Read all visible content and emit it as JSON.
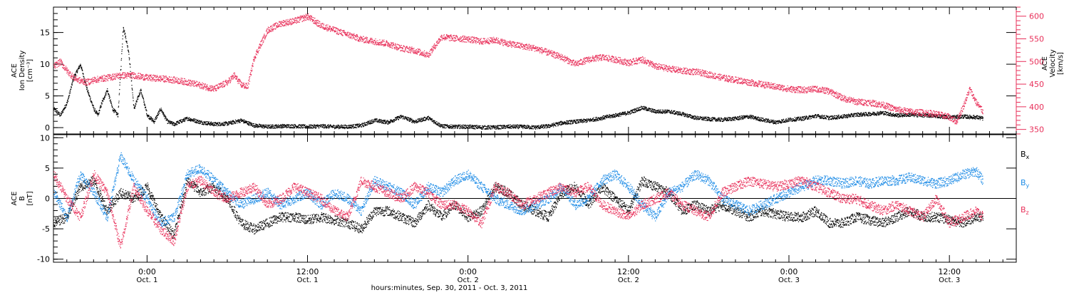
{
  "chart_data": [
    {
      "type": "scatter",
      "panel": "top",
      "left_axis": {
        "label_lines": [
          "ACE",
          "Ion Density",
          "[cm⁻³]"
        ],
        "ylim": [
          -1,
          19
        ],
        "ticks": [
          0,
          5,
          10,
          15
        ],
        "color": "#000000"
      },
      "right_axis": {
        "label_lines": [
          "ACE",
          "Velocity",
          "[km/s]"
        ],
        "ylim": [
          340,
          620
        ],
        "ticks": [
          350,
          400,
          450,
          500,
          550,
          600
        ],
        "color": "#e8305a"
      },
      "x_hours_from_sep30_0000": {
        "xlim": [
          17,
          89
        ]
      },
      "series": [
        {
          "axis": "left",
          "color": "#000000",
          "x": [
            17,
            17.5,
            18,
            18.5,
            19,
            19.5,
            20,
            20.3,
            20.6,
            21,
            21.4,
            21.8,
            22.2,
            22.6,
            23,
            23.5,
            24,
            24.5,
            25,
            25.5,
            26,
            27,
            28,
            29,
            30,
            31,
            32,
            33,
            34,
            35,
            36,
            37,
            38,
            39,
            40,
            41,
            42,
            43,
            44,
            45,
            46,
            47,
            48,
            49,
            50,
            51,
            52,
            53,
            54,
            55,
            56,
            57,
            58,
            59,
            60,
            61,
            62,
            63,
            64,
            65,
            66,
            67,
            68,
            69,
            70,
            71,
            72,
            73,
            74,
            75,
            76,
            77,
            78,
            79,
            80,
            81,
            82,
            83,
            84,
            85,
            86,
            86.5
          ],
          "y": [
            3,
            2,
            4,
            8,
            10,
            6,
            3,
            2,
            4,
            6,
            3,
            2,
            16,
            12,
            3,
            6,
            2,
            1,
            3,
            1,
            0.6,
            1.5,
            0.9,
            0.6,
            0.7,
            1.2,
            0.4,
            0.2,
            0.3,
            0.3,
            0.2,
            0.3,
            0.2,
            0.2,
            0.4,
            1.2,
            0.9,
            1.8,
            1.0,
            1.6,
            0.3,
            0.2,
            0.2,
            0.1,
            0.1,
            0.2,
            0.2,
            0.1,
            0.3,
            0.8,
            1.0,
            1.2,
            1.6,
            2.0,
            2.4,
            3.2,
            2.6,
            2.6,
            2.2,
            1.6,
            1.4,
            1.3,
            1.5,
            1.8,
            1.3,
            0.9,
            1.3,
            1.5,
            1.9,
            1.6,
            1.8,
            2.1,
            2.2,
            2.4,
            2.0,
            2.1,
            2.0,
            1.9,
            1.7,
            1.8,
            1.7,
            1.5
          ]
        },
        {
          "axis": "right",
          "color": "#e8305a",
          "x": [
            17,
            17.5,
            18,
            18.5,
            19,
            19.5,
            20,
            21,
            22,
            23,
            24,
            25,
            26,
            27,
            28,
            29,
            30,
            30.5,
            31,
            31.5,
            32,
            33,
            34,
            35,
            36,
            37,
            38,
            39,
            40,
            41,
            42,
            43,
            44,
            45,
            46,
            47,
            48,
            49,
            50,
            51,
            52,
            53,
            54,
            55,
            56,
            57,
            58,
            59,
            60,
            61,
            62,
            63,
            64,
            65,
            66,
            67,
            68,
            69,
            70,
            71,
            72,
            73,
            74,
            75,
            76,
            77,
            78,
            79,
            80,
            81,
            82,
            83,
            84,
            84.5,
            85,
            85.5,
            86,
            86.5
          ],
          "y": [
            490,
            500,
            480,
            465,
            458,
            455,
            460,
            465,
            470,
            470,
            465,
            463,
            460,
            455,
            448,
            440,
            455,
            470,
            450,
            445,
            510,
            570,
            585,
            590,
            600,
            580,
            570,
            560,
            550,
            545,
            540,
            530,
            525,
            515,
            555,
            552,
            550,
            545,
            548,
            540,
            535,
            530,
            520,
            510,
            495,
            505,
            510,
            505,
            498,
            505,
            490,
            485,
            480,
            478,
            472,
            465,
            460,
            455,
            450,
            445,
            440,
            438,
            440,
            435,
            420,
            412,
            410,
            405,
            395,
            390,
            388,
            385,
            378,
            368,
            400,
            440,
            410,
            390
          ]
        }
      ]
    },
    {
      "type": "scatter",
      "panel": "bottom",
      "left_axis": {
        "label_lines": [
          "ACE",
          "B",
          "[nT]"
        ],
        "ylim": [
          -10.5,
          10.5
        ],
        "ticks": [
          -10,
          -5,
          0,
          5,
          10
        ]
      },
      "x_hours_from_sep30_0000": {
        "xlim": [
          17,
          89
        ]
      },
      "series": [
        {
          "name_main": "B",
          "name_sub": "x",
          "color": "#000000",
          "x": [
            17,
            18,
            19,
            20,
            21,
            22,
            23,
            24,
            25,
            26,
            27,
            28,
            29,
            30,
            31,
            32,
            33,
            34,
            35,
            36,
            37,
            38,
            39,
            40,
            41,
            42,
            43,
            44,
            45,
            46,
            47,
            48,
            49,
            50,
            51,
            52,
            53,
            54,
            55,
            56,
            57,
            58,
            59,
            60,
            61,
            62,
            63,
            64,
            65,
            66,
            67,
            68,
            69,
            70,
            71,
            72,
            73,
            74,
            75,
            76,
            77,
            78,
            79,
            80,
            81,
            82,
            83,
            84,
            85,
            86,
            86.5
          ],
          "y": [
            -4,
            -3,
            2,
            3,
            -2,
            1,
            0,
            2,
            -3,
            -6,
            3,
            1,
            2,
            0,
            -4,
            -5,
            -4,
            -3,
            -3,
            -3.5,
            -3,
            -3.5,
            -4,
            -5,
            -2,
            -2,
            -3,
            -4,
            -1,
            -3,
            -1,
            -3,
            -2,
            2,
            1,
            -1,
            -2,
            -3,
            1,
            2,
            -1,
            2,
            0,
            -2,
            3,
            2,
            1,
            -2,
            -1,
            -2,
            -1,
            -2,
            -3,
            -2,
            -2.5,
            -3,
            -3,
            -2,
            -4,
            -4,
            -3,
            -3.5,
            -4,
            -3,
            -2,
            -3,
            -3,
            -3.5,
            -4,
            -3,
            -3
          ]
        },
        {
          "name_main": "B",
          "name_sub": "y",
          "color": "#1e8ce6",
          "x": [
            17,
            18,
            19,
            20,
            21,
            22,
            23,
            24,
            25,
            26,
            27,
            28,
            29,
            30,
            31,
            32,
            33,
            34,
            35,
            36,
            37,
            38,
            39,
            40,
            41,
            42,
            43,
            44,
            45,
            46,
            47,
            48,
            49,
            50,
            51,
            52,
            53,
            54,
            55,
            56,
            57,
            58,
            59,
            60,
            61,
            62,
            63,
            64,
            65,
            66,
            67,
            68,
            69,
            70,
            71,
            72,
            73,
            74,
            75,
            76,
            77,
            78,
            79,
            80,
            81,
            82,
            83,
            84,
            85,
            86,
            86.5
          ],
          "y": [
            1,
            -3,
            4,
            1,
            -3,
            7,
            3,
            0,
            -4,
            -3,
            4,
            5,
            3,
            1,
            -1,
            0,
            1,
            -1,
            0,
            1,
            -1,
            1,
            0,
            -2,
            3,
            2,
            1,
            -1,
            2,
            1,
            3,
            4,
            2,
            0,
            -1,
            -2,
            -1,
            0,
            2,
            -1,
            0,
            3,
            4,
            2,
            -1,
            -3,
            1,
            2,
            4,
            3,
            0,
            -1,
            -2,
            -1,
            0,
            1,
            2,
            3,
            3,
            2.5,
            3,
            2.5,
            3,
            3,
            3.5,
            3,
            2.5,
            3,
            4,
            4.5,
            3
          ]
        },
        {
          "name_main": "B",
          "name_sub": "z",
          "color": "#e8305a",
          "x": [
            17,
            18,
            19,
            20,
            21,
            22,
            23,
            24,
            25,
            26,
            27,
            28,
            29,
            30,
            31,
            32,
            33,
            34,
            35,
            36,
            37,
            38,
            39,
            40,
            41,
            42,
            43,
            44,
            45,
            46,
            47,
            48,
            49,
            50,
            51,
            52,
            53,
            54,
            55,
            56,
            57,
            58,
            59,
            60,
            61,
            62,
            63,
            64,
            65,
            66,
            67,
            68,
            69,
            70,
            71,
            72,
            73,
            74,
            75,
            76,
            77,
            78,
            79,
            80,
            81,
            82,
            83,
            84,
            85,
            86,
            86.5
          ],
          "y": [
            4,
            0,
            -3,
            4,
            1,
            -8,
            2,
            -2,
            -5,
            -7,
            2,
            3,
            1,
            0,
            1,
            2,
            -1,
            0,
            2,
            1,
            0,
            -2,
            -3,
            3,
            2,
            1,
            0,
            2,
            1,
            -1,
            -1,
            -2,
            -4,
            2,
            1,
            -1,
            0,
            1,
            2,
            1,
            2,
            -1,
            -2,
            -3,
            -1,
            0,
            1,
            -1,
            -2,
            -3,
            1,
            2,
            3,
            2.5,
            2,
            2.5,
            3,
            2,
            1,
            0,
            0,
            -1,
            -2,
            -1,
            -2,
            -3,
            0,
            -4,
            -3,
            -2,
            -3
          ]
        }
      ],
      "zero_line": 0
    }
  ],
  "x_axis": {
    "tick_time_labels": [
      "0:00",
      "12:00",
      "0:00",
      "12:00",
      "0:00",
      "12:00"
    ],
    "tick_date_labels": [
      "Oct. 1",
      "Oct. 1",
      "Oct. 2",
      "Oct. 2",
      "Oct. 3",
      "Oct. 3"
    ],
    "tick_hours": [
      24,
      36,
      48,
      60,
      72,
      84
    ],
    "title": "hours:minutes, Sep. 30, 2011 - Oct.  3, 2011"
  }
}
